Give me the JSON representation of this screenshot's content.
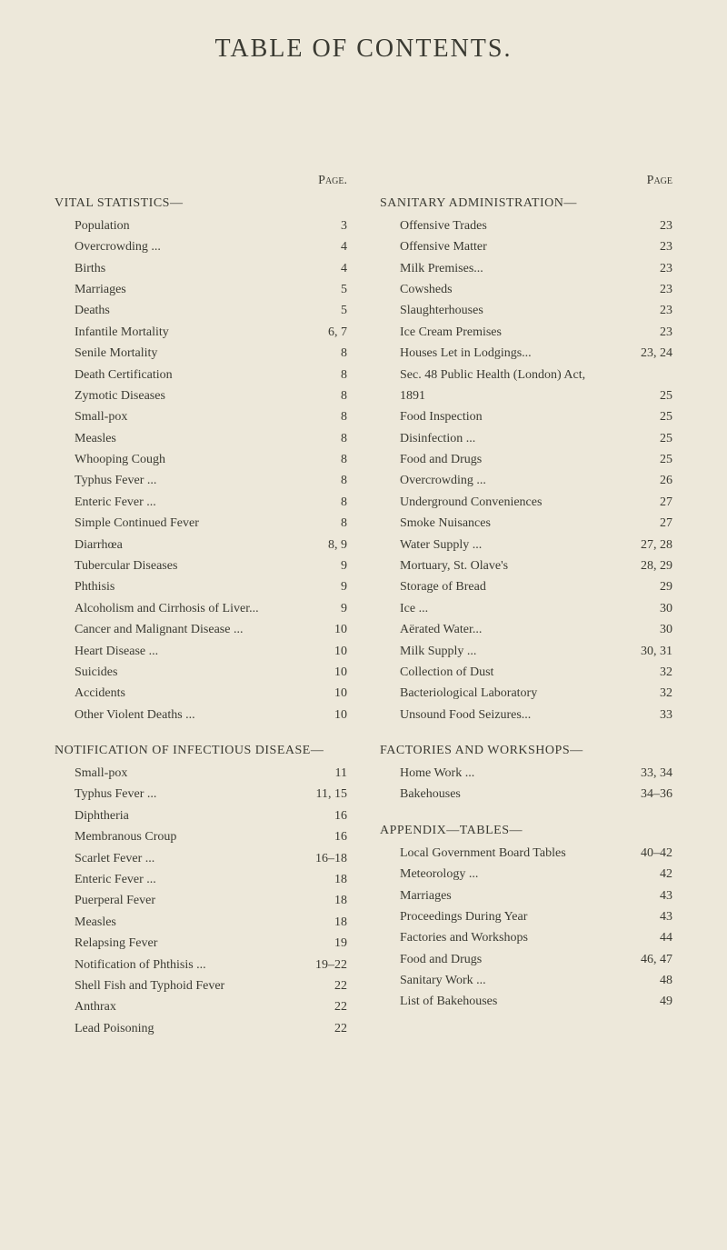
{
  "title": "TABLE OF CONTENTS.",
  "page_label_left": "Page.",
  "page_label_right": "Page",
  "colors": {
    "background": "#ede8da",
    "text": "#3a3a32"
  },
  "left_sections": [
    {
      "heading": "VITAL STATISTICS—",
      "entries": [
        {
          "label": "Population",
          "page": "3"
        },
        {
          "label": "Overcrowding ...",
          "page": "4"
        },
        {
          "label": "Births",
          "page": "4"
        },
        {
          "label": "Marriages",
          "page": "5"
        },
        {
          "label": "Deaths",
          "page": "5"
        },
        {
          "label": "Infantile Mortality",
          "page": "6, 7"
        },
        {
          "label": "Senile Mortality",
          "page": "8"
        },
        {
          "label": "Death Certification",
          "page": "8"
        },
        {
          "label": "Zymotic Diseases",
          "page": "8"
        },
        {
          "label": "Small-pox",
          "page": "8"
        },
        {
          "label": "Measles",
          "page": "8"
        },
        {
          "label": "Whooping Cough",
          "page": "8"
        },
        {
          "label": "Typhus Fever ...",
          "page": "8"
        },
        {
          "label": "Enteric Fever ...",
          "page": "8"
        },
        {
          "label": "Simple Continued Fever",
          "page": "8"
        },
        {
          "label": "Diarrhœa",
          "page": "8, 9"
        },
        {
          "label": "Tubercular Diseases",
          "page": "9"
        },
        {
          "label": "Phthisis",
          "page": "9"
        },
        {
          "label": "Alcoholism and Cirrhosis of Liver...",
          "page": "9"
        },
        {
          "label": "Cancer and Malignant Disease ...",
          "page": "10"
        },
        {
          "label": "Heart Disease ...",
          "page": "10"
        },
        {
          "label": "Suicides",
          "page": "10"
        },
        {
          "label": "Accidents",
          "page": "10"
        },
        {
          "label": "Other Violent Deaths ...",
          "page": "10"
        }
      ]
    },
    {
      "heading": "NOTIFICATION OF INFECTIOUS DISEASE—",
      "entries": [
        {
          "label": "Small-pox",
          "page": "11"
        },
        {
          "label": "Typhus Fever ...",
          "page": "11, 15"
        },
        {
          "label": "Diphtheria",
          "page": "16"
        },
        {
          "label": "Membranous Croup",
          "page": "16"
        },
        {
          "label": "Scarlet Fever ...",
          "page": "16–18"
        },
        {
          "label": "Enteric Fever ...",
          "page": "18"
        },
        {
          "label": "Puerperal Fever",
          "page": "18"
        },
        {
          "label": "Measles",
          "page": "18"
        },
        {
          "label": "Relapsing Fever",
          "page": "19"
        },
        {
          "label": "Notification of Phthisis ...",
          "page": "19–22"
        },
        {
          "label": "Shell Fish and Typhoid Fever",
          "page": "22"
        },
        {
          "label": "Anthrax",
          "page": "22"
        },
        {
          "label": "Lead Poisoning",
          "page": "22"
        }
      ]
    }
  ],
  "right_sections": [
    {
      "heading": "SANITARY ADMINISTRATION—",
      "entries": [
        {
          "label": "Offensive Trades",
          "page": "23"
        },
        {
          "label": "Offensive Matter",
          "page": "23"
        },
        {
          "label": "Milk Premises...",
          "page": "23"
        },
        {
          "label": "Cowsheds",
          "page": "23"
        },
        {
          "label": "Slaughterhouses",
          "page": "23"
        },
        {
          "label": "Ice Cream Premises",
          "page": "23"
        },
        {
          "label": "Houses Let in Lodgings...",
          "page": "23, 24"
        },
        {
          "label": "Sec. 48 Public Health (London) Act,",
          "page": ""
        },
        {
          "label": "   1891",
          "page": "25"
        },
        {
          "label": "Food Inspection",
          "page": "25"
        },
        {
          "label": "Disinfection ...",
          "page": "25"
        },
        {
          "label": "Food and Drugs",
          "page": "25"
        },
        {
          "label": "Overcrowding ...",
          "page": "26"
        },
        {
          "label": "Underground Conveniences",
          "page": "27"
        },
        {
          "label": "Smoke Nuisances",
          "page": "27"
        },
        {
          "label": "Water Supply ...",
          "page": "27, 28"
        },
        {
          "label": "Mortuary, St. Olave's",
          "page": "28, 29"
        },
        {
          "label": "Storage of Bread",
          "page": "29"
        },
        {
          "label": "Ice ...",
          "page": "30"
        },
        {
          "label": "Aërated Water...",
          "page": "30"
        },
        {
          "label": "Milk Supply ...",
          "page": "30, 31"
        },
        {
          "label": "Collection of Dust",
          "page": "32"
        },
        {
          "label": "Bacteriological Laboratory",
          "page": "32"
        },
        {
          "label": "Unsound Food Seizures...",
          "page": "33"
        }
      ]
    },
    {
      "heading": "FACTORIES AND WORKSHOPS—",
      "entries": [
        {
          "label": "Home Work ...",
          "page": "33, 34"
        },
        {
          "label": "Bakehouses",
          "page": "34–36"
        }
      ]
    },
    {
      "heading": "APPENDIX—TABLES—",
      "entries": [
        {
          "label": "Local Government Board Tables",
          "page": "40–42"
        },
        {
          "label": "Meteorology ...",
          "page": "42"
        },
        {
          "label": "Marriages",
          "page": "43"
        },
        {
          "label": "Proceedings During Year",
          "page": "43"
        },
        {
          "label": "Factories and Workshops",
          "page": "44"
        },
        {
          "label": "Food and Drugs",
          "page": "46, 47"
        },
        {
          "label": "Sanitary Work ...",
          "page": "48"
        },
        {
          "label": "List of Bakehouses",
          "page": "49"
        }
      ]
    }
  ]
}
